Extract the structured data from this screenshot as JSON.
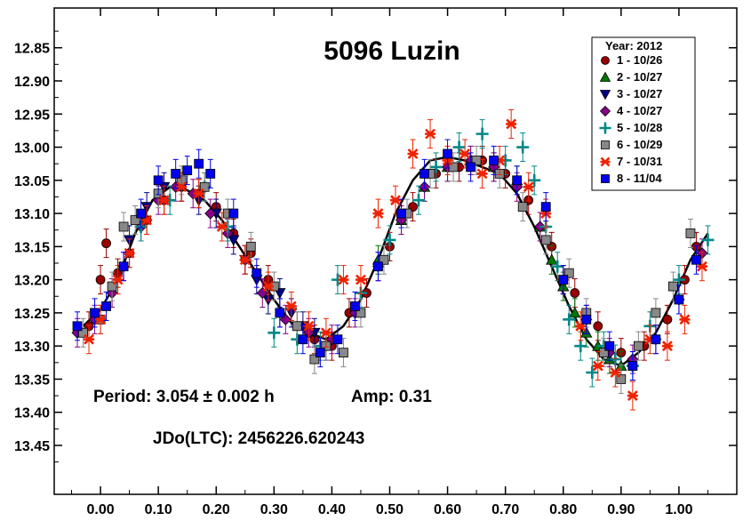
{
  "chart_data": {
    "type": "scatter",
    "title": "5096 Luzin",
    "xlabel": "",
    "ylabel": "",
    "xlim": [
      -0.08,
      1.1
    ],
    "ylim": [
      13.5238,
      12.79
    ],
    "y_inverted": true,
    "x_ticks": [
      "0.00",
      "0.10",
      "0.20",
      "0.30",
      "0.40",
      "0.50",
      "0.60",
      "0.70",
      "0.80",
      "0.90",
      "1.00"
    ],
    "y_ticks": [
      "12.85",
      "12.90",
      "12.95",
      "13.00",
      "13.05",
      "13.10",
      "13.15",
      "13.20",
      "13.25",
      "13.30",
      "13.35",
      "13.40",
      "13.45"
    ],
    "grid": false,
    "legend_placement": "top-right",
    "legend_title": "Year: 2012",
    "annotations": {
      "period": "Period: 3.054 ± 0.002 h",
      "amp": "Amp: 0.31",
      "epoch": "JDo(LTC): 2456226.620243"
    },
    "fit_curve": {
      "x": [
        -0.03,
        0.0,
        0.03,
        0.06,
        0.09,
        0.12,
        0.15,
        0.18,
        0.21,
        0.24,
        0.27,
        0.3,
        0.33,
        0.36,
        0.39,
        0.42,
        0.45,
        0.48,
        0.51,
        0.54,
        0.57,
        0.6,
        0.63,
        0.66,
        0.69,
        0.72,
        0.75,
        0.78,
        0.81,
        0.84,
        0.87,
        0.9,
        0.93,
        0.96,
        0.99,
        1.02,
        1.05
      ],
      "y": [
        13.27,
        13.245,
        13.2,
        13.13,
        13.08,
        13.06,
        13.065,
        13.08,
        13.11,
        13.15,
        13.19,
        13.23,
        13.265,
        13.28,
        13.29,
        13.27,
        13.23,
        13.17,
        13.1,
        13.05,
        13.02,
        13.015,
        13.02,
        13.03,
        13.04,
        13.07,
        13.12,
        13.18,
        13.24,
        13.29,
        13.32,
        13.33,
        13.31,
        13.28,
        13.23,
        13.17,
        13.13
      ]
    },
    "series": [
      {
        "name": "1 - 10/26",
        "color": "#990000",
        "marker": "circle",
        "x": [
          -0.02,
          0.0,
          0.01,
          0.03,
          0.05,
          0.08,
          0.11,
          0.14,
          0.17,
          0.2,
          0.23,
          0.26,
          0.29,
          0.31,
          0.34,
          0.37,
          0.4,
          0.43,
          0.46,
          0.5,
          0.54,
          0.58,
          0.62,
          0.66,
          0.7,
          0.74,
          0.78,
          0.82,
          0.86,
          0.9,
          0.94,
          0.98,
          1.01,
          1.03
        ],
        "y": [
          13.27,
          13.2,
          13.145,
          13.19,
          13.16,
          13.11,
          13.08,
          13.06,
          13.07,
          13.09,
          13.13,
          13.16,
          13.2,
          13.25,
          13.27,
          13.29,
          13.3,
          13.25,
          13.22,
          13.15,
          13.09,
          13.04,
          13.03,
          13.02,
          13.04,
          13.08,
          13.15,
          13.22,
          13.27,
          13.31,
          13.3,
          13.26,
          13.2,
          13.15
        ]
      },
      {
        "name": "2 - 10/27",
        "color": "#007700",
        "marker": "triangle-up",
        "x": [
          0.48,
          0.52,
          0.56,
          0.6,
          0.64,
          0.68,
          0.72,
          0.76,
          0.78,
          0.8,
          0.82,
          0.84,
          0.86,
          0.88,
          0.9
        ],
        "y": [
          13.17,
          13.11,
          13.06,
          13.03,
          13.02,
          13.03,
          13.05,
          13.12,
          13.17,
          13.21,
          13.25,
          13.28,
          13.3,
          13.32,
          13.33
        ]
      },
      {
        "name": "3 - 10/27",
        "color": "#000088",
        "marker": "triangle-down",
        "x": [
          0.05,
          0.08,
          0.11,
          0.14,
          0.17,
          0.2,
          0.23,
          0.25,
          0.27,
          0.29,
          0.31,
          0.33,
          0.35,
          0.37,
          0.39
        ],
        "y": [
          13.14,
          13.09,
          13.06,
          13.06,
          13.08,
          13.1,
          13.14,
          13.17,
          13.2,
          13.23,
          13.22,
          13.25,
          13.27,
          13.28,
          13.3
        ]
      },
      {
        "name": "4 - 10/27",
        "color": "#880088",
        "marker": "diamond",
        "x": [
          -0.04,
          -0.01,
          0.02,
          0.04,
          0.07,
          0.1,
          0.13,
          0.16,
          0.19,
          0.22,
          0.25,
          0.28,
          0.32,
          0.36,
          0.4,
          0.44,
          0.48,
          0.52,
          0.56,
          0.6,
          0.64,
          0.68,
          0.72,
          0.76,
          0.8,
          0.84,
          0.88,
          0.92,
          0.96,
          1.0,
          1.04
        ],
        "y": [
          13.28,
          13.26,
          13.22,
          13.18,
          13.12,
          13.08,
          13.06,
          13.07,
          13.1,
          13.13,
          13.17,
          13.22,
          13.26,
          13.28,
          13.29,
          13.25,
          13.18,
          13.11,
          13.06,
          13.03,
          13.02,
          13.03,
          13.06,
          13.12,
          13.2,
          13.26,
          13.31,
          13.32,
          13.29,
          13.23,
          13.16
        ]
      },
      {
        "name": "5 - 10/28",
        "color": "#008888",
        "marker": "plus",
        "x": [
          0.07,
          0.12,
          0.18,
          0.22,
          0.3,
          0.34,
          0.38,
          0.41,
          0.45,
          0.5,
          0.55,
          0.58,
          0.62,
          0.66,
          0.7,
          0.73,
          0.75,
          0.77,
          0.79,
          0.81,
          0.83,
          0.85,
          0.87,
          0.89,
          0.92,
          0.95,
          1.0,
          1.05
        ],
        "y": [
          13.12,
          13.08,
          13.06,
          13.12,
          13.28,
          13.29,
          13.3,
          13.2,
          13.22,
          13.14,
          13.08,
          13.03,
          13.0,
          12.98,
          13.02,
          13.0,
          13.05,
          13.12,
          13.18,
          13.26,
          13.3,
          13.34,
          13.3,
          13.32,
          13.33,
          13.27,
          13.2,
          13.14
        ]
      },
      {
        "name": "6 - 10/29",
        "color": "#888888",
        "marker": "square",
        "x": [
          -0.03,
          0.0,
          0.02,
          0.04,
          0.06,
          0.1,
          0.14,
          0.18,
          0.22,
          0.26,
          0.3,
          0.34,
          0.37,
          0.39,
          0.42,
          0.45,
          0.49,
          0.53,
          0.57,
          0.61,
          0.65,
          0.69,
          0.73,
          0.77,
          0.81,
          0.84,
          0.87,
          0.9,
          0.93,
          0.96,
          0.99,
          1.02
        ],
        "y": [
          13.28,
          13.26,
          13.21,
          13.12,
          13.11,
          13.07,
          13.05,
          13.06,
          13.1,
          13.15,
          13.21,
          13.27,
          13.32,
          13.3,
          13.31,
          13.25,
          13.17,
          13.1,
          13.04,
          13.03,
          13.02,
          13.04,
          13.09,
          13.14,
          13.19,
          13.25,
          13.31,
          13.35,
          13.3,
          13.25,
          13.21,
          13.13
        ]
      },
      {
        "name": "7 - 10/31",
        "color": "#ee2200",
        "marker": "asterisk",
        "x": [
          -0.02,
          0.0,
          0.03,
          0.05,
          0.08,
          0.11,
          0.14,
          0.17,
          0.21,
          0.25,
          0.29,
          0.33,
          0.36,
          0.39,
          0.42,
          0.45,
          0.48,
          0.51,
          0.54,
          0.57,
          0.6,
          0.63,
          0.66,
          0.69,
          0.71,
          0.74,
          0.77,
          0.8,
          0.83,
          0.86,
          0.89,
          0.92,
          0.95,
          0.98,
          1.01,
          1.04
        ],
        "y": [
          13.29,
          13.26,
          13.2,
          13.16,
          13.11,
          13.08,
          13.06,
          13.07,
          13.12,
          13.17,
          13.21,
          13.24,
          13.27,
          13.28,
          13.2,
          13.2,
          13.1,
          13.08,
          13.01,
          12.98,
          13.02,
          13.01,
          13.04,
          13.02,
          12.965,
          13.06,
          13.1,
          13.2,
          13.27,
          13.33,
          13.34,
          13.375,
          13.29,
          13.3,
          13.26,
          13.18
        ]
      },
      {
        "name": "8 - 11/04",
        "color": "#0000ee",
        "marker": "square",
        "x": [
          -0.04,
          -0.01,
          0.01,
          0.04,
          0.07,
          0.1,
          0.13,
          0.15,
          0.17,
          0.19,
          0.23,
          0.27,
          0.31,
          0.35,
          0.38,
          0.41,
          0.44,
          0.48,
          0.52,
          0.56,
          0.6,
          0.64,
          0.68,
          0.72,
          0.77,
          0.8,
          0.84,
          0.88,
          0.92,
          0.96,
          1.0,
          1.03
        ],
        "y": [
          13.27,
          13.25,
          13.24,
          13.18,
          13.1,
          13.05,
          13.04,
          13.035,
          13.025,
          13.04,
          13.1,
          13.19,
          13.25,
          13.29,
          13.31,
          13.29,
          13.24,
          13.18,
          13.1,
          13.04,
          13.01,
          13.03,
          13.02,
          13.05,
          13.09,
          13.2,
          13.26,
          13.3,
          13.33,
          13.29,
          13.23,
          13.17
        ]
      }
    ]
  }
}
